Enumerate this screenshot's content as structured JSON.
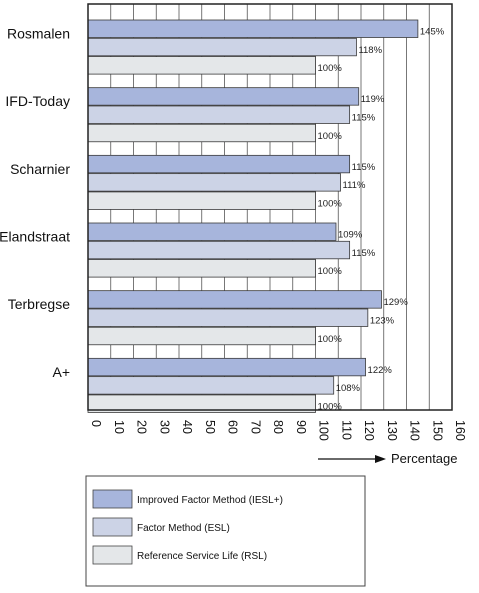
{
  "chart_data": {
    "type": "bar",
    "orientation": "horizontal",
    "categories": [
      "Rosmalen",
      "IFD-Today",
      "Scharnier",
      "Elandstraat",
      "Terbregse",
      "A+"
    ],
    "series": [
      {
        "name": "Improved Factor Method (IESL+)",
        "values": [
          145,
          119,
          115,
          109,
          129,
          122
        ],
        "labels": [
          "145%",
          "119%",
          "115%",
          "109%",
          "129%",
          "122%"
        ],
        "color": "#a7b5dc"
      },
      {
        "name": "Factor Method (ESL)",
        "values": [
          118,
          115,
          111,
          115,
          123,
          108
        ],
        "labels": [
          "118%",
          "115%",
          "111%",
          "115%",
          "123%",
          "108%"
        ],
        "color": "#ccd3e6"
      },
      {
        "name": "Reference Service Life (RSL)",
        "values": [
          100,
          100,
          100,
          100,
          100,
          100
        ],
        "labels": [
          "100%",
          "100%",
          "100%",
          "100%",
          "100%",
          "100%"
        ],
        "color": "#e4e7e9"
      }
    ],
    "xlabel": "Percentage",
    "xlim": [
      0,
      160
    ],
    "xticks": [
      "0",
      "10",
      "20",
      "30",
      "40",
      "50",
      "60",
      "70",
      "80",
      "90",
      "100",
      "110",
      "120",
      "130",
      "140",
      "150",
      "160"
    ],
    "grid": true,
    "legend_position": "bottom-left",
    "plot_background": "#ffffff",
    "grid_color": "#555555"
  }
}
